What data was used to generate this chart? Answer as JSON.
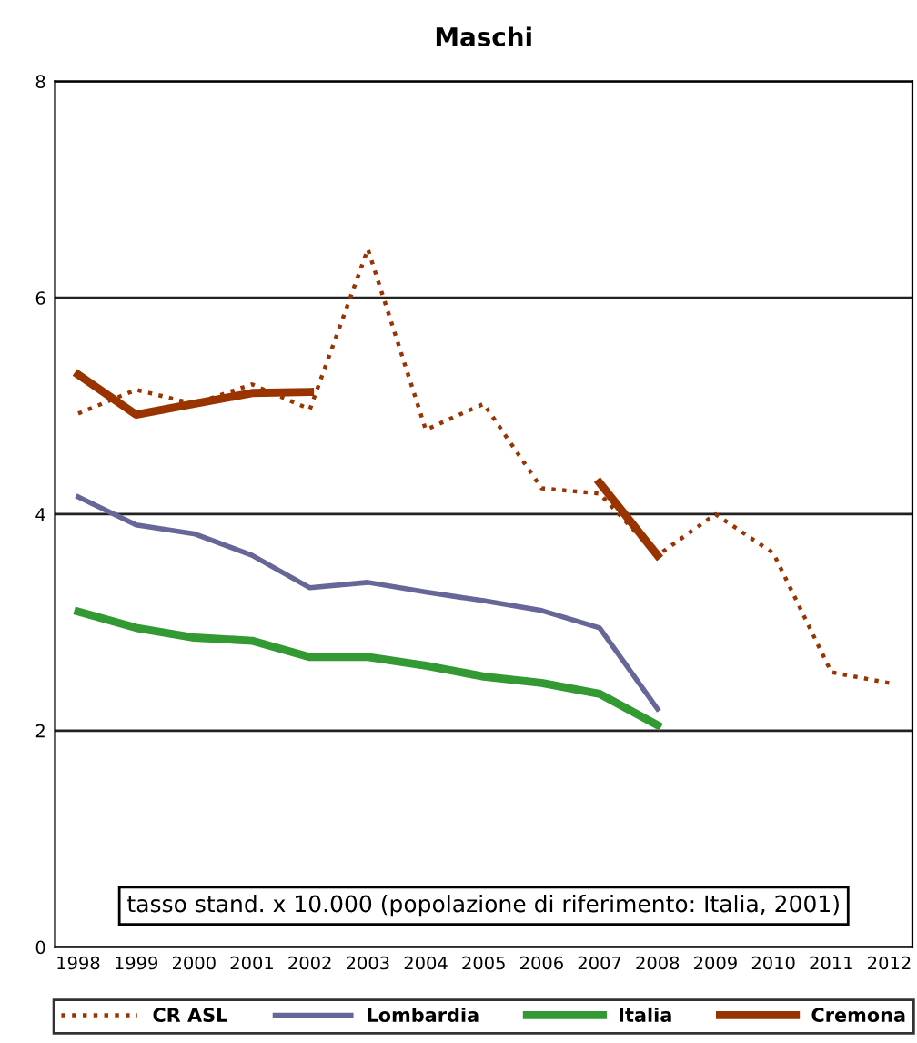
{
  "chart_data": {
    "type": "line",
    "title": "Maschi",
    "categories": [
      "1998",
      "1999",
      "2000",
      "2001",
      "2002",
      "2003",
      "2004",
      "2005",
      "2006",
      "2007",
      "2008",
      "2009",
      "2010",
      "2011",
      "2012"
    ],
    "ylim": [
      0,
      8
    ],
    "yticks": [
      0,
      2,
      4,
      6,
      8
    ],
    "grid": "y",
    "legend": "bottom",
    "annotations": [
      "tasso stand. x 10.000 (popolazione di riferimento: Italia, 2001)"
    ],
    "series": [
      {
        "name": "CR ASL",
        "color": "#993300",
        "line_style": "dotted",
        "values": [
          4.93,
          5.15,
          5.02,
          5.2,
          4.97,
          6.45,
          4.78,
          5.02,
          4.24,
          4.19,
          3.62,
          4.0,
          3.64,
          2.54,
          2.44
        ]
      },
      {
        "name": "Lombardia",
        "color": "#666699",
        "line_style": "solid",
        "values": [
          4.16,
          3.9,
          3.82,
          3.62,
          3.32,
          3.37,
          3.28,
          3.2,
          3.11,
          2.95,
          2.2,
          null,
          null,
          null,
          null
        ]
      },
      {
        "name": "Italia",
        "color": "#339933",
        "line_style": "solid",
        "values": [
          3.1,
          2.95,
          2.86,
          2.83,
          2.68,
          2.68,
          2.6,
          2.5,
          2.44,
          2.34,
          2.05,
          null,
          null,
          null,
          null
        ]
      },
      {
        "name": "Cremona",
        "color": "#993300",
        "line_style": "solid",
        "values": [
          5.29,
          4.92,
          5.02,
          5.12,
          5.13,
          null,
          null,
          null,
          null,
          4.29,
          3.62,
          null,
          null,
          null,
          null
        ]
      }
    ]
  }
}
